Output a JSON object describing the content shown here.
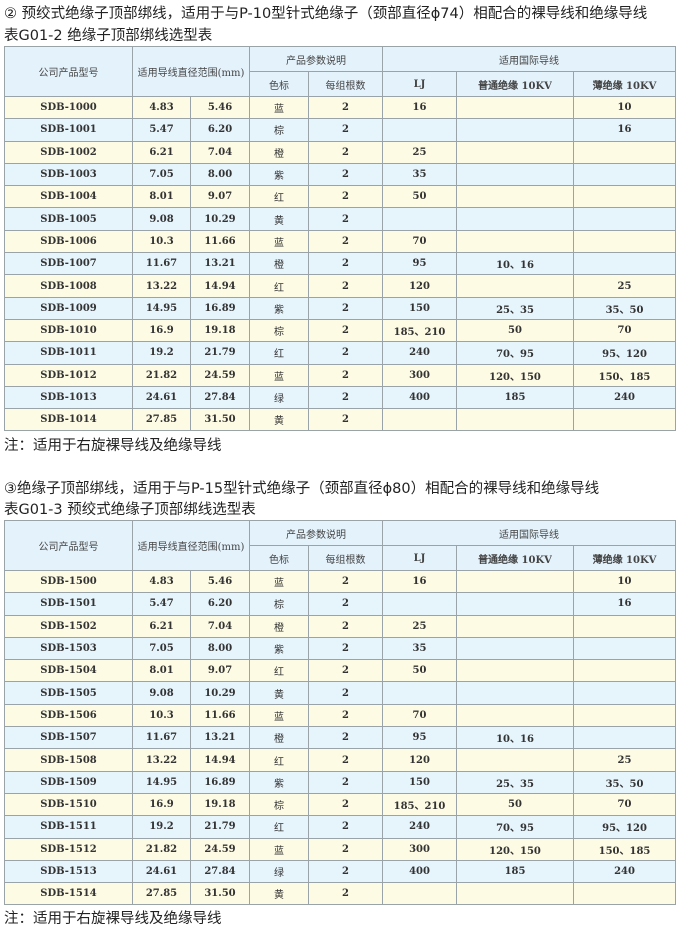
{
  "colors": {
    "header_bg": "#e4f2fb",
    "row_odd": "#fdfbe4",
    "row_even": "#e6f4fc"
  },
  "sections": [
    {
      "heading": "② 预绞式绝缘子顶部绑线，适用于与P-10型针式绝缘子（颈部直径ϕ74）相配合的裸导线和绝缘导线",
      "table_title": "表G01-2  绝缘子顶部绑线选型表",
      "headers": {
        "model": "公司产品型号",
        "range": "适用导线直径范围(mm)",
        "params": "产品参数说明",
        "color": "色标",
        "count": "每组根数",
        "conductors": "适用国际导线",
        "lj": "LJ",
        "normal": "普通绝缘  10KV",
        "thin": "薄绝缘  10KV"
      },
      "rows": [
        [
          "SDB-1000",
          "4.83",
          "5.46",
          "蓝",
          "2",
          "16",
          "",
          "10"
        ],
        [
          "SDB-1001",
          "5.47",
          "6.20",
          "棕",
          "2",
          "",
          "",
          "16"
        ],
        [
          "SDB-1002",
          "6.21",
          "7.04",
          "橙",
          "2",
          "25",
          "",
          ""
        ],
        [
          "SDB-1003",
          "7.05",
          "8.00",
          "紫",
          "2",
          "35",
          "",
          ""
        ],
        [
          "SDB-1004",
          "8.01",
          "9.07",
          "红",
          "2",
          "50",
          "",
          ""
        ],
        [
          "SDB-1005",
          "9.08",
          "10.29",
          "黄",
          "2",
          "",
          "",
          ""
        ],
        [
          "SDB-1006",
          "10.3",
          "11.66",
          "蓝",
          "2",
          "70",
          "",
          ""
        ],
        [
          "SDB-1007",
          "11.67",
          "13.21",
          "橙",
          "2",
          "95",
          "10、16",
          ""
        ],
        [
          "SDB-1008",
          "13.22",
          "14.94",
          "红",
          "2",
          "120",
          "",
          "25"
        ],
        [
          "SDB-1009",
          "14.95",
          "16.89",
          "紫",
          "2",
          "150",
          "25、35",
          "35、50"
        ],
        [
          "SDB-1010",
          "16.9",
          "19.18",
          "棕",
          "2",
          "185、210",
          "50",
          "70"
        ],
        [
          "SDB-1011",
          "19.2",
          "21.79",
          "红",
          "2",
          "240",
          "70、95",
          "95、120"
        ],
        [
          "SDB-1012",
          "21.82",
          "24.59",
          "蓝",
          "2",
          "300",
          "120、150",
          "150、185"
        ],
        [
          "SDB-1013",
          "24.61",
          "27.84",
          "绿",
          "2",
          "400",
          "185",
          "240"
        ],
        [
          "SDB-1014",
          "27.85",
          "31.50",
          "黄",
          "2",
          "",
          "",
          ""
        ]
      ],
      "note": "注：适用于右旋裸导线及绝缘导线"
    },
    {
      "heading": "③绝缘子顶部绑线，适用于与P-15型针式绝缘子（颈部直径ϕ80）相配合的裸导线和绝缘导线",
      "table_title": "表G01-3  预绞式绝缘子顶部绑线选型表",
      "headers": {
        "model": "公司产品型号",
        "range": "适用导线直径范围(mm)",
        "params": "产品参数说明",
        "color": "色标",
        "count": "每组根数",
        "conductors": "适用国际导线",
        "lj": "LJ",
        "normal": "普通绝缘  10KV",
        "thin": "薄绝缘  10KV"
      },
      "rows": [
        [
          "SDB-1500",
          "4.83",
          "5.46",
          "蓝",
          "2",
          "16",
          "",
          "10"
        ],
        [
          "SDB-1501",
          "5.47",
          "6.20",
          "棕",
          "2",
          "",
          "",
          "16"
        ],
        [
          "SDB-1502",
          "6.21",
          "7.04",
          "橙",
          "2",
          "25",
          "",
          ""
        ],
        [
          "SDB-1503",
          "7.05",
          "8.00",
          "紫",
          "2",
          "35",
          "",
          ""
        ],
        [
          "SDB-1504",
          "8.01",
          "9.07",
          "红",
          "2",
          "50",
          "",
          ""
        ],
        [
          "SDB-1505",
          "9.08",
          "10.29",
          "黄",
          "2",
          "",
          "",
          ""
        ],
        [
          "SDB-1506",
          "10.3",
          "11.66",
          "蓝",
          "2",
          "70",
          "",
          ""
        ],
        [
          "SDB-1507",
          "11.67",
          "13.21",
          "橙",
          "2",
          "95",
          "10、16",
          ""
        ],
        [
          "SDB-1508",
          "13.22",
          "14.94",
          "红",
          "2",
          "120",
          "",
          "25"
        ],
        [
          "SDB-1509",
          "14.95",
          "16.89",
          "紫",
          "2",
          "150",
          "25、35",
          "35、50"
        ],
        [
          "SDB-1510",
          "16.9",
          "19.18",
          "棕",
          "2",
          "185、210",
          "50",
          "70"
        ],
        [
          "SDB-1511",
          "19.2",
          "21.79",
          "红",
          "2",
          "240",
          "70、95",
          "95、120"
        ],
        [
          "SDB-1512",
          "21.82",
          "24.59",
          "蓝",
          "2",
          "300",
          "120、150",
          "150、185"
        ],
        [
          "SDB-1513",
          "24.61",
          "27.84",
          "绿",
          "2",
          "400",
          "185",
          "240"
        ],
        [
          "SDB-1514",
          "27.85",
          "31.50",
          "黄",
          "2",
          "",
          "",
          ""
        ]
      ],
      "note": "注：适用于右旋裸导线及绝缘导线"
    }
  ]
}
